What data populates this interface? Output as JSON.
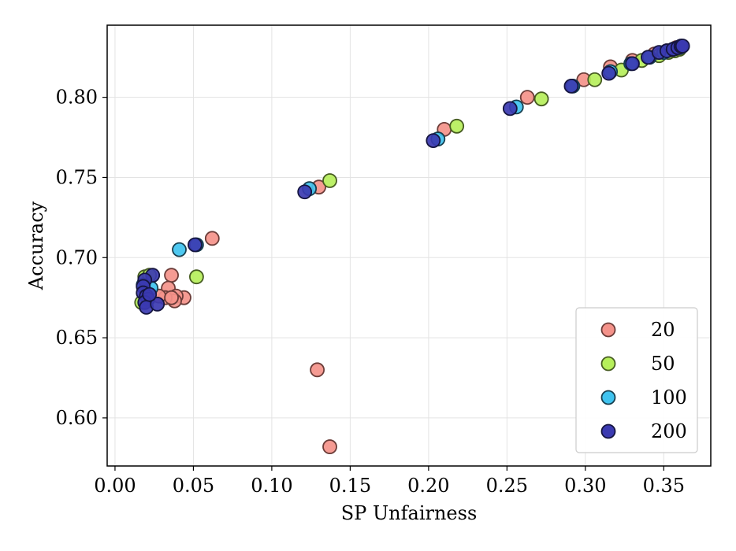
{
  "chart_data": {
    "type": "scatter",
    "title": "",
    "xlabel": "SP Unfairness",
    "ylabel": "Accuracy",
    "xlim": [
      -0.005,
      0.38
    ],
    "ylim": [
      0.57,
      0.845
    ],
    "xticks": [
      "0.00",
      "0.05",
      "0.10",
      "0.15",
      "0.20",
      "0.25",
      "0.30",
      "0.35"
    ],
    "yticks": [
      "0.60",
      "0.65",
      "0.70",
      "0.75",
      "0.80"
    ],
    "grid": true,
    "legend_position": "lower-right",
    "series": [
      {
        "name": "20",
        "color": "#f4928a",
        "edge_color": "#6b3c38",
        "points": [
          [
            0.137,
            0.582
          ],
          [
            0.129,
            0.63
          ],
          [
            0.13,
            0.744
          ],
          [
            0.062,
            0.712
          ],
          [
            0.036,
            0.689
          ],
          [
            0.034,
            0.681
          ],
          [
            0.044,
            0.675
          ],
          [
            0.039,
            0.676
          ],
          [
            0.038,
            0.673
          ],
          [
            0.032,
            0.675
          ],
          [
            0.028,
            0.676
          ],
          [
            0.036,
            0.675
          ],
          [
            0.21,
            0.78
          ],
          [
            0.263,
            0.8
          ],
          [
            0.299,
            0.811
          ],
          [
            0.316,
            0.819
          ],
          [
            0.33,
            0.823
          ],
          [
            0.344,
            0.827
          ],
          [
            0.352,
            0.829
          ],
          [
            0.358,
            0.831
          ]
        ]
      },
      {
        "name": "50",
        "color": "#b6ef5b",
        "edge_color": "#475c22",
        "points": [
          [
            0.137,
            0.748
          ],
          [
            0.052,
            0.688
          ],
          [
            0.017,
            0.672
          ],
          [
            0.019,
            0.688
          ],
          [
            0.022,
            0.689
          ],
          [
            0.218,
            0.782
          ],
          [
            0.272,
            0.799
          ],
          [
            0.306,
            0.811
          ],
          [
            0.323,
            0.817
          ],
          [
            0.336,
            0.823
          ],
          [
            0.347,
            0.826
          ],
          [
            0.353,
            0.828
          ],
          [
            0.357,
            0.829
          ],
          [
            0.36,
            0.83
          ]
        ]
      },
      {
        "name": "100",
        "color": "#3fc3ef",
        "edge_color": "#173f4f",
        "points": [
          [
            0.041,
            0.705
          ],
          [
            0.124,
            0.743
          ],
          [
            0.023,
            0.681
          ],
          [
            0.018,
            0.683
          ],
          [
            0.052,
            0.708
          ],
          [
            0.206,
            0.774
          ],
          [
            0.256,
            0.794
          ],
          [
            0.292,
            0.807
          ],
          [
            0.316,
            0.816
          ],
          [
            0.329,
            0.821
          ],
          [
            0.341,
            0.825
          ],
          [
            0.35,
            0.828
          ],
          [
            0.356,
            0.83
          ],
          [
            0.36,
            0.831
          ]
        ]
      },
      {
        "name": "200",
        "color": "#3b3ab1",
        "edge_color": "#151540",
        "points": [
          [
            0.121,
            0.741
          ],
          [
            0.051,
            0.708
          ],
          [
            0.024,
            0.689
          ],
          [
            0.019,
            0.686
          ],
          [
            0.018,
            0.682
          ],
          [
            0.018,
            0.678
          ],
          [
            0.02,
            0.676
          ],
          [
            0.021,
            0.674
          ],
          [
            0.019,
            0.672
          ],
          [
            0.02,
            0.669
          ],
          [
            0.027,
            0.671
          ],
          [
            0.022,
            0.677
          ],
          [
            0.203,
            0.773
          ],
          [
            0.252,
            0.793
          ],
          [
            0.291,
            0.807
          ],
          [
            0.315,
            0.815
          ],
          [
            0.33,
            0.821
          ],
          [
            0.34,
            0.825
          ],
          [
            0.347,
            0.828
          ],
          [
            0.352,
            0.829
          ],
          [
            0.356,
            0.83
          ],
          [
            0.359,
            0.831
          ],
          [
            0.361,
            0.832
          ],
          [
            0.362,
            0.832
          ]
        ]
      }
    ]
  }
}
